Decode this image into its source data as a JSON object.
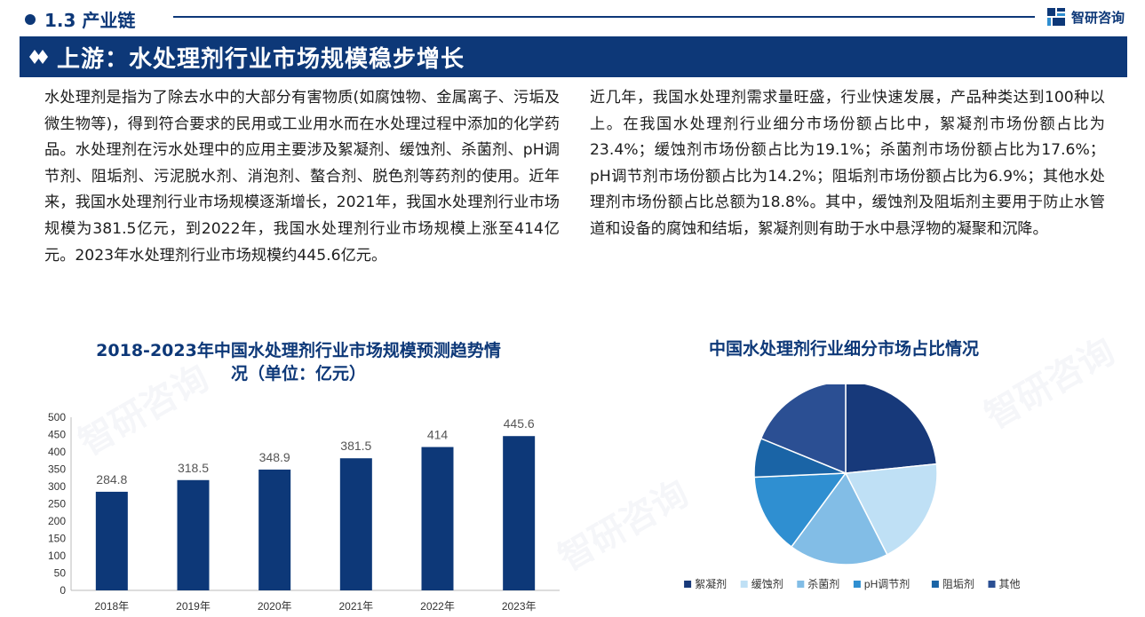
{
  "header": {
    "section": "1.3 产业链",
    "brand": "智研咨询",
    "title": "上游：水处理剂行业市场规模稳步增长"
  },
  "paragraphs": {
    "left": "水处理剂是指为了除去水中的大部分有害物质(如腐蚀物、金属离子、污垢及微生物等)，得到符合要求的民用或工业用水而在水处理过程中添加的化学药品。水处理剂在污水处理中的应用主要涉及絮凝剂、缓蚀剂、杀菌剂、pH调节剂、阻垢剂、污泥脱水剂、消泡剂、螯合剂、脱色剂等药剂的使用。近年来，我国水处理剂行业市场规模逐渐增长，2021年，我国水处理剂行业市场规模为381.5亿元，到2022年，我国水处理剂行业市场规模上涨至414亿元。2023年水处理剂行业市场规模约445.6亿元。",
    "right": "近几年，我国水处理剂需求量旺盛，行业快速发展，产品种类达到100种以上。在我国水处理剂行业细分市场份额占比中，絮凝剂市场份额占比为23.4%；缓蚀剂市场份额占比为19.1%；杀菌剂市场份额占比为17.6%；pH调节剂市场份额占比为14.2%；阻垢剂市场份额占比为6.9%；其他水处理剂市场份额占比总额为18.8%。其中，缓蚀剂及阻垢剂主要用于防止水管道和设备的腐蚀和结垢，絮凝剂则有助于水中悬浮物的凝聚和沉降。"
  },
  "colors": {
    "primary": "#0d3878",
    "bar": "#0d3878"
  },
  "chart_data": [
    {
      "type": "bar",
      "title": "2018-2023年中国水处理剂行业市场规模预测趋势情况（单位：亿元）",
      "categories": [
        "2018年",
        "2019年",
        "2020年",
        "2021年",
        "2022年",
        "2023年"
      ],
      "values": [
        284.8,
        318.5,
        348.9,
        381.5,
        414,
        445.6
      ],
      "value_labels": [
        "284.8",
        "318.5",
        "348.9",
        "381.5",
        "414",
        "445.6"
      ],
      "yticks": [
        "0",
        "50",
        "100",
        "150",
        "200",
        "250",
        "300",
        "350",
        "400",
        "450",
        "500"
      ],
      "ylim": [
        0,
        500
      ],
      "grid": false
    },
    {
      "type": "pie",
      "title": "中国水处理剂行业细分市场占比情况",
      "legend_position": "bottom",
      "slices": [
        {
          "label": "絮凝剂",
          "value": 23.4,
          "color": "#17397a"
        },
        {
          "label": "缓蚀剂",
          "value": 19.1,
          "color": "#bfe0f5"
        },
        {
          "label": "杀菌剂",
          "value": 17.6,
          "color": "#82bde6"
        },
        {
          "label": "pH调节剂",
          "value": 14.2,
          "color": "#2f8fd1"
        },
        {
          "label": "阻垢剂",
          "value": 6.9,
          "color": "#1a64a6"
        },
        {
          "label": "其他",
          "value": 18.8,
          "color": "#2b4f93"
        }
      ]
    }
  ]
}
